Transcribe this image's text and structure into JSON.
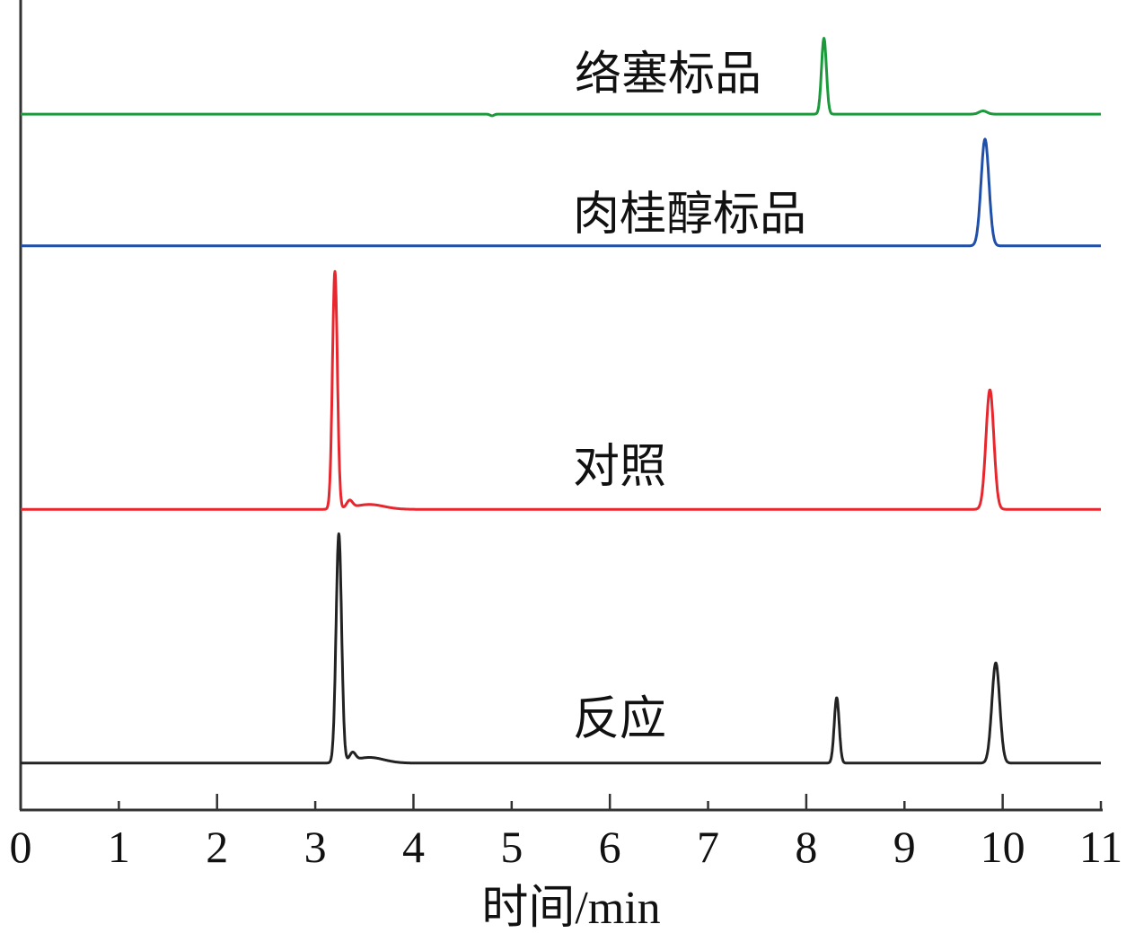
{
  "chart_data": {
    "type": "line",
    "title": "",
    "xlabel": "时间/min",
    "ylabel": "",
    "xlim": [
      0,
      11
    ],
    "ylim": [
      0,
      100
    ],
    "xticks": [
      0,
      1,
      2,
      3,
      4,
      5,
      6,
      7,
      8,
      9,
      10,
      11
    ],
    "grid": false,
    "legend": "none (labels placed beside traces)",
    "series": [
      {
        "name": "络塞标品",
        "color": "#1b9a3c",
        "baseline": 86.1,
        "peaks": [
          {
            "rt": 8.18,
            "height": 9.4,
            "sigma": 0.025
          },
          {
            "rt": 9.8,
            "height": 0.4,
            "sigma": 0.04
          },
          {
            "rt": 4.8,
            "height": -0.2,
            "sigma": 0.02
          }
        ]
      },
      {
        "name": "肉桂醇标品",
        "color": "#1f4fa8",
        "baseline": 69.8,
        "peaks": [
          {
            "rt": 9.82,
            "height": 13.2,
            "sigma": 0.04
          }
        ]
      },
      {
        "name": "对照",
        "color": "#e8262e",
        "baseline": 37.2,
        "peaks": [
          {
            "rt": 3.2,
            "height": 29.4,
            "sigma": 0.025
          },
          {
            "rt": 3.35,
            "height": 0.9,
            "sigma": 0.03
          },
          {
            "rt": 3.55,
            "height": 0.6,
            "sigma": 0.15
          },
          {
            "rt": 9.87,
            "height": 14.8,
            "sigma": 0.04
          }
        ]
      },
      {
        "name": "反应",
        "color": "#222222",
        "baseline": 5.8,
        "peaks": [
          {
            "rt": 3.24,
            "height": 28.3,
            "sigma": 0.028
          },
          {
            "rt": 3.38,
            "height": 1.0,
            "sigma": 0.03
          },
          {
            "rt": 3.55,
            "height": 0.7,
            "sigma": 0.15
          },
          {
            "rt": 8.31,
            "height": 8.1,
            "sigma": 0.025
          },
          {
            "rt": 9.93,
            "height": 12.4,
            "sigma": 0.04
          }
        ]
      }
    ]
  }
}
